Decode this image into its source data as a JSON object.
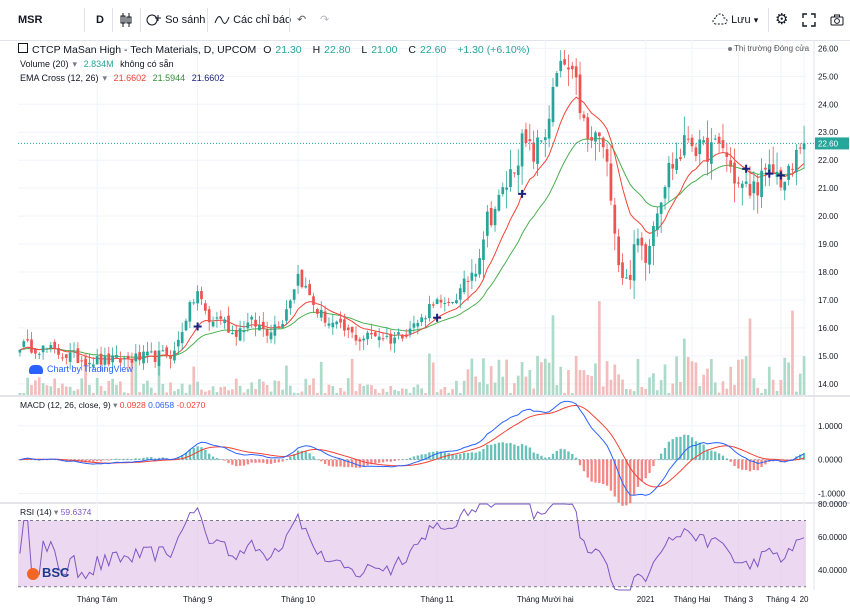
{
  "toolbar": {
    "symbol": "MSR",
    "interval": "D",
    "compare_label": "So sánh",
    "indicators_label": "Các chỉ báo",
    "save_label": "Lưu"
  },
  "legend": {
    "title": "CTCP MaSan High - Tech Materials, D, UPCOM",
    "o_label": "O",
    "o_value": "21.30",
    "h_label": "H",
    "h_value": "22.80",
    "l_label": "L",
    "l_value": "21.00",
    "c_label": "C",
    "c_value": "22.60",
    "change": "+1.30 (+6.10%)",
    "market_status": "Thị trường Đóng cửa",
    "volume_label": "Volume (20)",
    "volume_value": "2.834M",
    "volume_na": "không có sẵn",
    "ema_label": "EMA Cross (12, 26)",
    "ema_v1": "21.6602",
    "ema_v2": "21.5944",
    "ema_v3": "21.6602"
  },
  "watermark": {
    "tradingview": "Chart by TradingView",
    "bsc": "BSC"
  },
  "colors": {
    "up": "#26a69a",
    "down": "#ef5350",
    "ema_fast": "#f44336",
    "ema_slow": "#4caf50",
    "macd_line": "#2962ff",
    "signal_line": "#f44336",
    "rsi_line": "#7e57c2",
    "rsi_band": "#e1bee7",
    "last_price": "#26a69a"
  },
  "chart_data": [
    {
      "type": "candlestick",
      "title": "CTCP MaSan High - Tech Materials, D, UPCOM",
      "x_ticks": [
        "Tháng Tám",
        "Tháng 9",
        "Tháng 10",
        "Tháng 11",
        "Tháng Mười hai",
        "2021",
        "Tháng Hai",
        "Tháng 3",
        "Tháng 4",
        "20"
      ],
      "y_ticks": [
        "14.00",
        "15.00",
        "16.00",
        "17.00",
        "18.00",
        "19.00",
        "20.00",
        "21.00",
        "22.00",
        "23.00",
        "24.00",
        "25.00",
        "26.00"
      ],
      "ylim": [
        13.6,
        26.3
      ],
      "last_price": "22.60",
      "ohlc_nodes": [
        [
          0,
          15.4
        ],
        [
          8,
          15.2
        ],
        [
          15,
          14.9
        ],
        [
          22,
          14.8
        ],
        [
          30,
          14.9
        ],
        [
          36,
          15.0
        ],
        [
          40,
          15.1
        ],
        [
          43,
          16.4
        ],
        [
          46,
          17.3
        ],
        [
          49,
          16.2
        ],
        [
          52,
          16.4
        ],
        [
          55,
          15.8
        ],
        [
          60,
          16.2
        ],
        [
          64,
          15.9
        ],
        [
          68,
          16.3
        ],
        [
          72,
          17.9
        ],
        [
          74,
          17.4
        ],
        [
          77,
          16.6
        ],
        [
          80,
          16.2
        ],
        [
          84,
          15.9
        ],
        [
          88,
          15.6
        ],
        [
          92,
          15.8
        ],
        [
          96,
          15.6
        ],
        [
          100,
          15.9
        ],
        [
          104,
          16.3
        ],
        [
          107,
          17.0
        ],
        [
          110,
          16.7
        ],
        [
          114,
          17.3
        ],
        [
          118,
          18.3
        ],
        [
          121,
          19.9
        ],
        [
          124,
          20.5
        ],
        [
          127,
          21.5
        ],
        [
          130,
          22.6
        ],
        [
          133,
          22.2
        ],
        [
          136,
          23.0
        ],
        [
          139,
          25.0
        ],
        [
          141,
          25.4
        ],
        [
          144,
          24.6
        ],
        [
          147,
          22.6
        ],
        [
          150,
          22.9
        ],
        [
          153,
          21.0
        ],
        [
          155,
          18.4
        ],
        [
          157,
          17.6
        ],
        [
          160,
          19.1
        ],
        [
          162,
          18.7
        ],
        [
          165,
          20.4
        ],
        [
          168,
          21.7
        ],
        [
          171,
          22.2
        ],
        [
          173,
          22.9
        ],
        [
          176,
          22.3
        ],
        [
          179,
          22.4
        ],
        [
          182,
          22.5
        ],
        [
          184,
          21.7
        ],
        [
          186,
          21.1
        ],
        [
          189,
          20.9
        ],
        [
          192,
          21.3
        ],
        [
          195,
          21.6
        ],
        [
          198,
          21.2
        ],
        [
          200,
          21.7
        ],
        [
          202,
          22.6
        ]
      ],
      "ema_cross_markers": [
        "Tháng 9",
        "Tháng 11",
        "Tháng Mười hai",
        "Tháng Hai",
        "Tháng 3",
        "Tháng 4"
      ]
    },
    {
      "type": "line",
      "title": "MACD (12, 26, close, 9)",
      "values_shown": [
        "0.0928",
        "0.0658",
        "-0.0270"
      ],
      "y_ticks": [
        "1.0000",
        "0.0000",
        "-1.0000"
      ],
      "ylim": [
        -1.25,
        1.85
      ]
    },
    {
      "type": "line",
      "title": "RSI (14)",
      "value_shown": "59.6374",
      "y_ticks": [
        "80.0000",
        "60.0000",
        "40.0000"
      ],
      "ylim": [
        28,
        80
      ],
      "band": [
        30,
        70
      ]
    }
  ]
}
